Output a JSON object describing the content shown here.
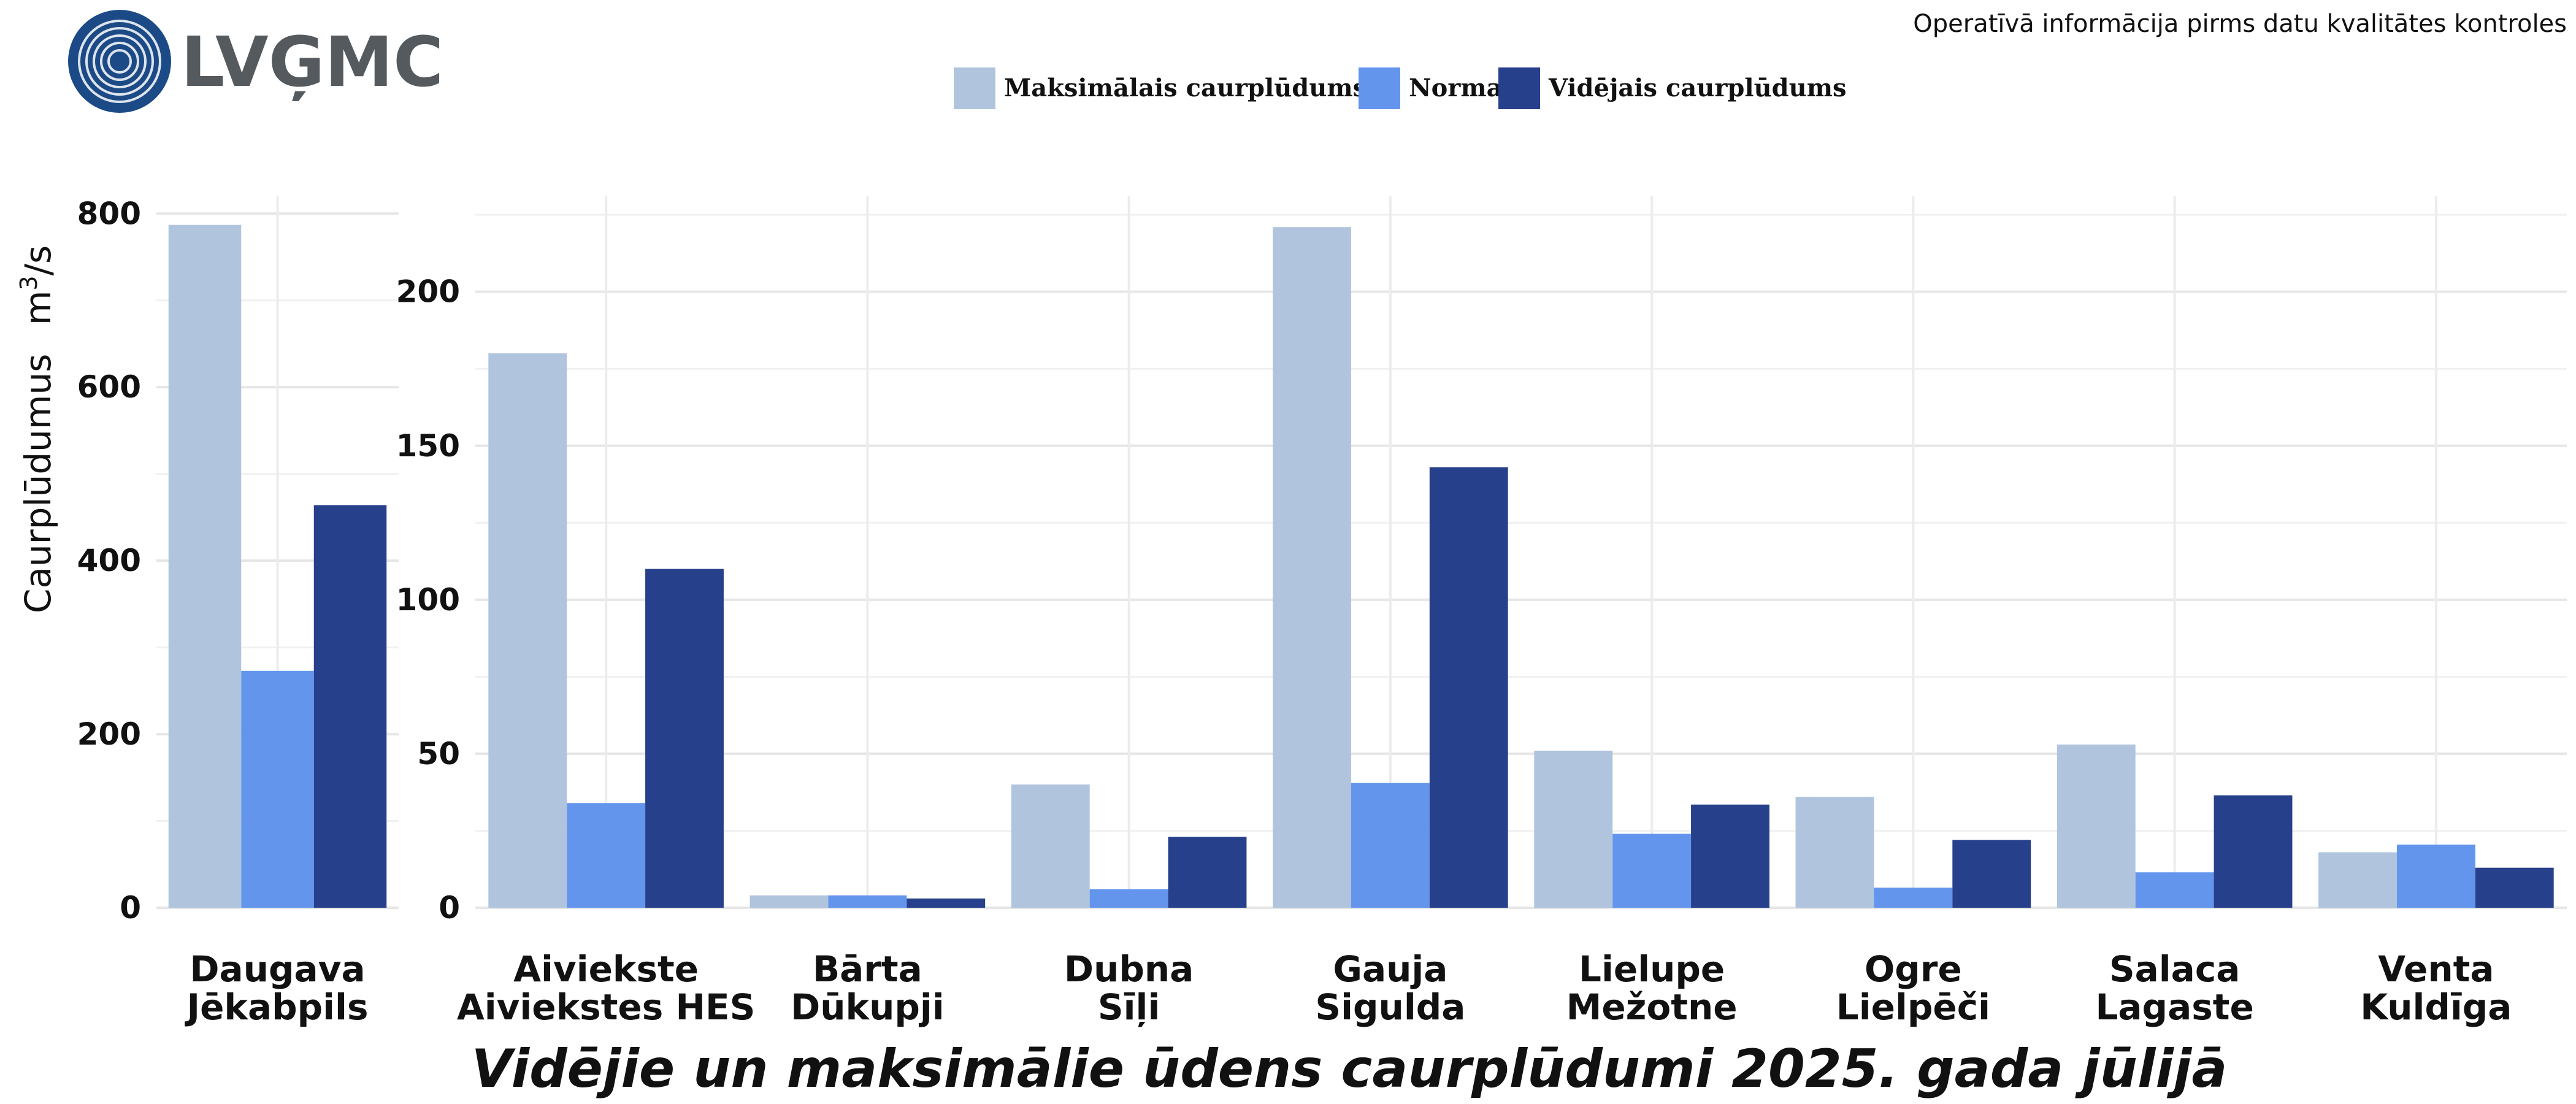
{
  "header": {
    "logo_text": "LVĢMC",
    "note": "Operatīvā informācija pirms datu kvalitātes kontroles"
  },
  "chart_data": [
    {
      "type": "bar",
      "title": "Vidējie un maksimālie ūdens caurplūdumi 2025. gada jūlijā",
      "ylabel": "Caurplūdumus",
      "ylabel_unit": "m",
      "ylabel_unit_sup": "3",
      "ylabel_unit_tail": "/s",
      "ylim": [
        0,
        820
      ],
      "yticks": [
        0,
        200,
        400,
        600,
        800
      ],
      "grid": true,
      "legend": "top-center",
      "categories": [
        [
          "Daugava",
          "Jēkabpils"
        ]
      ],
      "series": [
        {
          "name": "Maksimālais caurplūdums",
          "color": "#b0c4de",
          "values": [
            787
          ]
        },
        {
          "name": "Norma",
          "color": "#6495ed",
          "values": [
            273
          ]
        },
        {
          "name": "Vidējais caurplūdums",
          "color": "#27408b",
          "values": [
            464
          ]
        }
      ]
    },
    {
      "type": "bar",
      "ylim": [
        0,
        231
      ],
      "yticks": [
        0,
        50,
        100,
        150,
        200
      ],
      "grid": true,
      "categories": [
        [
          "Aiviekste",
          "Aiviekstes HES"
        ],
        [
          "Bārta",
          "Dūkupji"
        ],
        [
          "Dubna",
          "Sīļi"
        ],
        [
          "Gauja",
          "Sigulda"
        ],
        [
          "Lielupe",
          "Mežotne"
        ],
        [
          "Ogre",
          "Lielpēči"
        ],
        [
          "Salaca",
          "Lagaste"
        ],
        [
          "Venta",
          "Kuldīga"
        ]
      ],
      "series": [
        {
          "name": "Maksimālais caurplūdums",
          "color": "#b0c4de",
          "values": [
            180,
            4,
            40,
            221,
            51,
            36,
            53,
            18
          ]
        },
        {
          "name": "Norma",
          "color": "#6495ed",
          "values": [
            34,
            4,
            6,
            40.5,
            24,
            6.5,
            11.5,
            20.5
          ]
        },
        {
          "name": "Vidējais caurplūdums",
          "color": "#27408b",
          "values": [
            110,
            3,
            23,
            143,
            33.5,
            22,
            36.5,
            13
          ]
        }
      ]
    }
  ]
}
